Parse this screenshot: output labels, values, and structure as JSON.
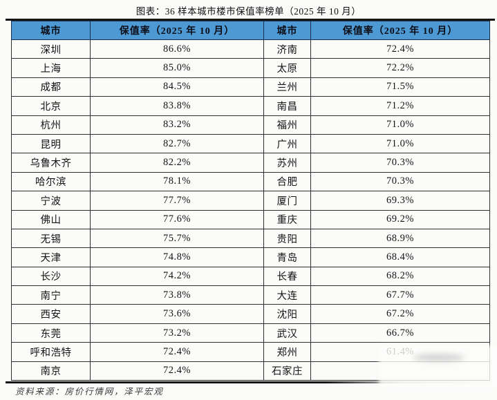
{
  "title": "图表：36 样本城市楼市保值率榜单（2025 年 10 月）",
  "source": "资料来源：房价行情网，泽平宏观",
  "colors": {
    "header_bg": "#4d99d3",
    "border": "#1d1d1d"
  },
  "table": {
    "headers": [
      "城市",
      "保值率（2025 年 10 月）",
      "城市",
      "保值率（2025 年 10 月）"
    ],
    "rows": [
      [
        "深圳",
        "86.6%",
        "济南",
        "72.4%"
      ],
      [
        "上海",
        "85.0%",
        "太原",
        "72.2%"
      ],
      [
        "成都",
        "84.5%",
        "兰州",
        "71.5%"
      ],
      [
        "北京",
        "83.8%",
        "南昌",
        "71.2%"
      ],
      [
        "杭州",
        "83.2%",
        "福州",
        "71.0%"
      ],
      [
        "昆明",
        "82.7%",
        "广州",
        "71.0%"
      ],
      [
        "乌鲁木齐",
        "82.2%",
        "苏州",
        "70.3%"
      ],
      [
        "哈尔滨",
        "78.1%",
        "合肥",
        "70.3%"
      ],
      [
        "宁波",
        "77.7%",
        "厦门",
        "69.3%"
      ],
      [
        "佛山",
        "77.6%",
        "重庆",
        "69.2%"
      ],
      [
        "无锡",
        "75.7%",
        "贵阳",
        "68.9%"
      ],
      [
        "天津",
        "74.8%",
        "青岛",
        "68.4%"
      ],
      [
        "长沙",
        "74.2%",
        "长春",
        "68.2%"
      ],
      [
        "南宁",
        "73.8%",
        "大连",
        "67.7%"
      ],
      [
        "西安",
        "73.6%",
        "沈阳",
        "67.2%"
      ],
      [
        "东莞",
        "73.2%",
        "武汉",
        "66.7%"
      ],
      [
        "呼和浩特",
        "72.4%",
        "郑州",
        "61.4%"
      ],
      [
        "南京",
        "72.4%",
        "石家庄",
        ""
      ]
    ]
  }
}
